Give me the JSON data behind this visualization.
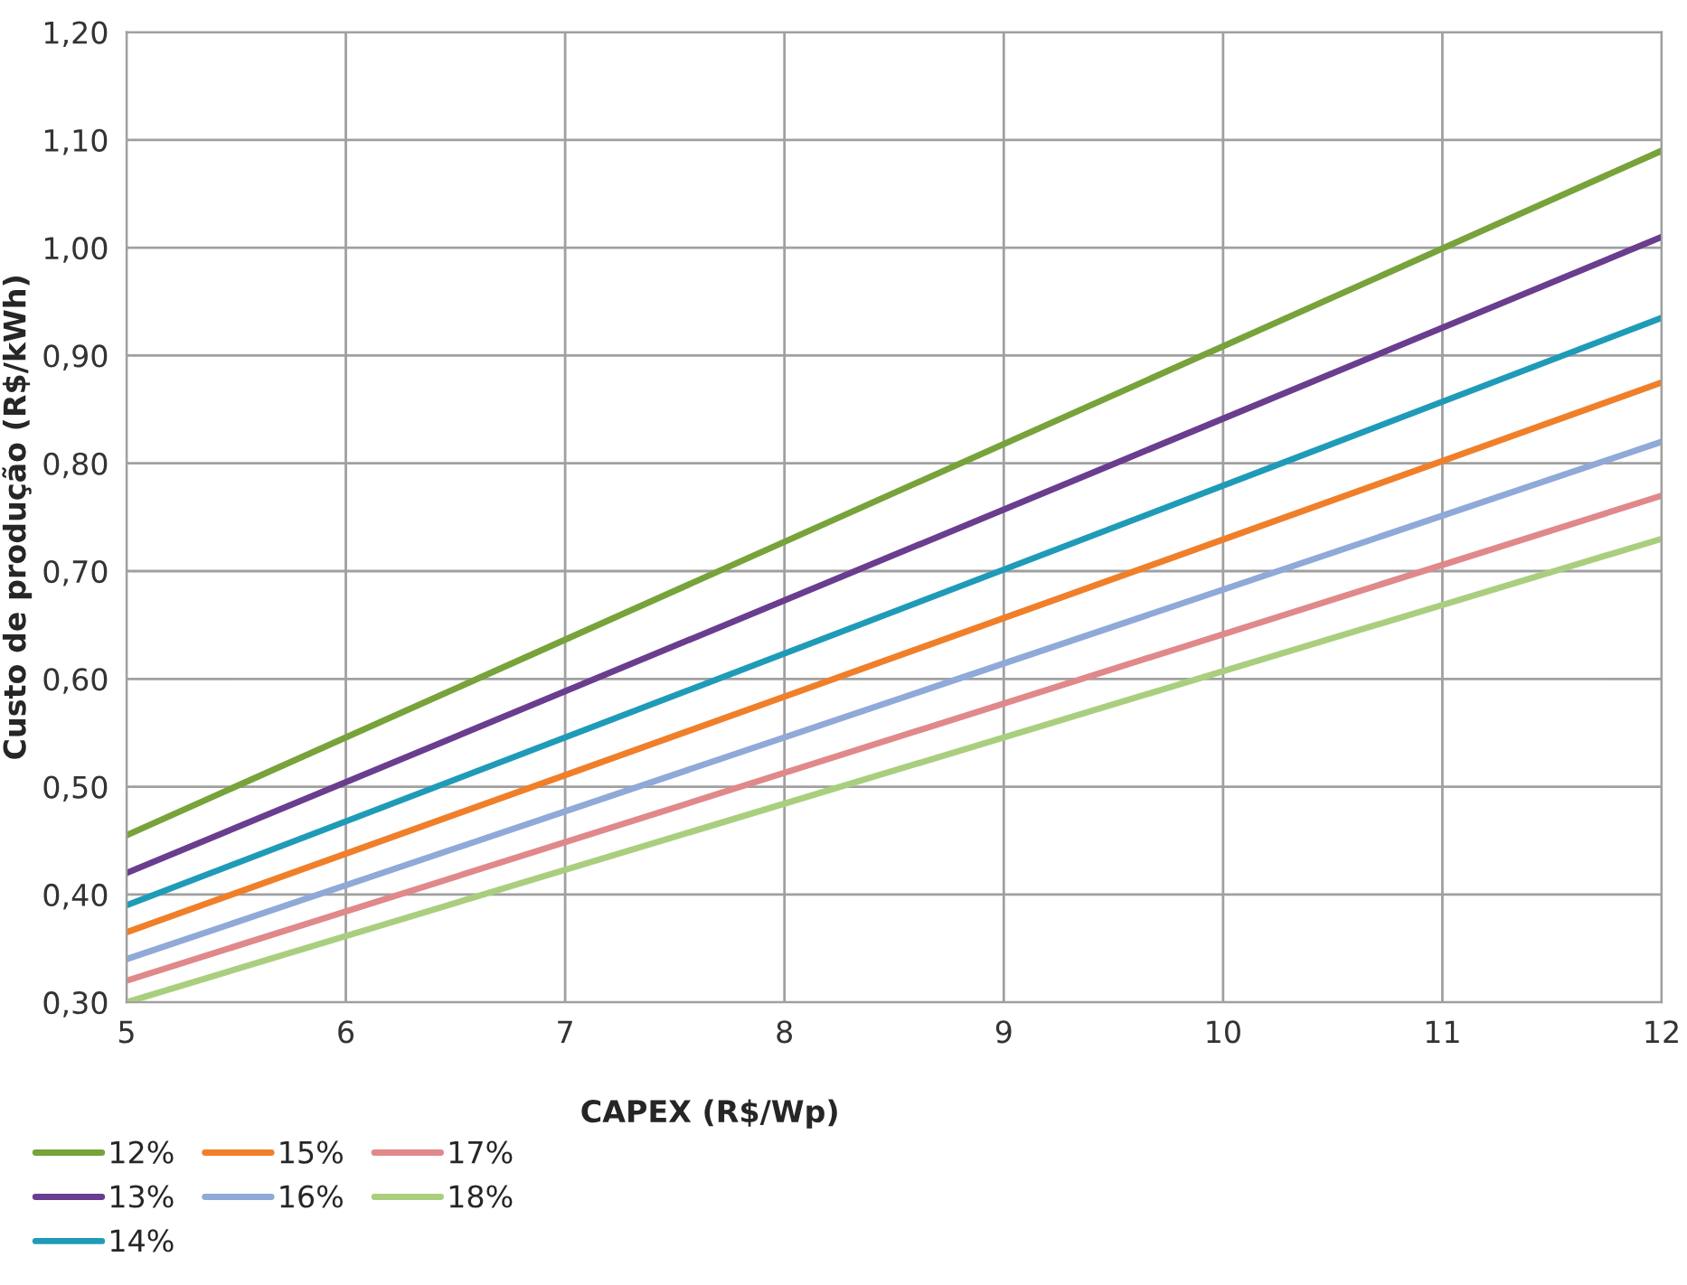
{
  "chart_data": {
    "type": "line",
    "xlabel": "CAPEX (R$/Wp)",
    "ylabel": "Custo de produção (R$/kWh)",
    "x": [
      5,
      12
    ],
    "series": [
      {
        "name": "12%",
        "color": "#77a33a",
        "values": [
          0.455,
          1.09
        ]
      },
      {
        "name": "13%",
        "color": "#6a3d8f",
        "values": [
          0.42,
          1.01
        ]
      },
      {
        "name": "14%",
        "color": "#1f9bb8",
        "values": [
          0.39,
          0.935
        ]
      },
      {
        "name": "15%",
        "color": "#f07f2a",
        "values": [
          0.365,
          0.875
        ]
      },
      {
        "name": "16%",
        "color": "#8fa9d8",
        "values": [
          0.34,
          0.82
        ]
      },
      {
        "name": "17%",
        "color": "#e0888a",
        "values": [
          0.32,
          0.77
        ]
      },
      {
        "name": "18%",
        "color": "#a9cf7e",
        "values": [
          0.3,
          0.73
        ]
      }
    ],
    "xlim": [
      5,
      12
    ],
    "xticks": [
      5,
      6,
      7,
      8,
      9,
      10,
      11,
      12
    ],
    "ylim": [
      0.3,
      1.2
    ],
    "yticks": [
      {
        "value": 0.3,
        "label": "0,30"
      },
      {
        "value": 0.4,
        "label": "0,40"
      },
      {
        "value": 0.5,
        "label": "0,50"
      },
      {
        "value": 0.6,
        "label": "0,60"
      },
      {
        "value": 0.7,
        "label": "0,70"
      },
      {
        "value": 0.8,
        "label": "0,80"
      },
      {
        "value": 0.9,
        "label": "0,90"
      },
      {
        "value": 1.0,
        "label": "1,00"
      },
      {
        "value": 1.1,
        "label": "1,10"
      },
      {
        "value": 1.2,
        "label": "1,20"
      }
    ],
    "grid": true,
    "legend": "bottom left",
    "marker": "none",
    "line_style": "solid"
  }
}
